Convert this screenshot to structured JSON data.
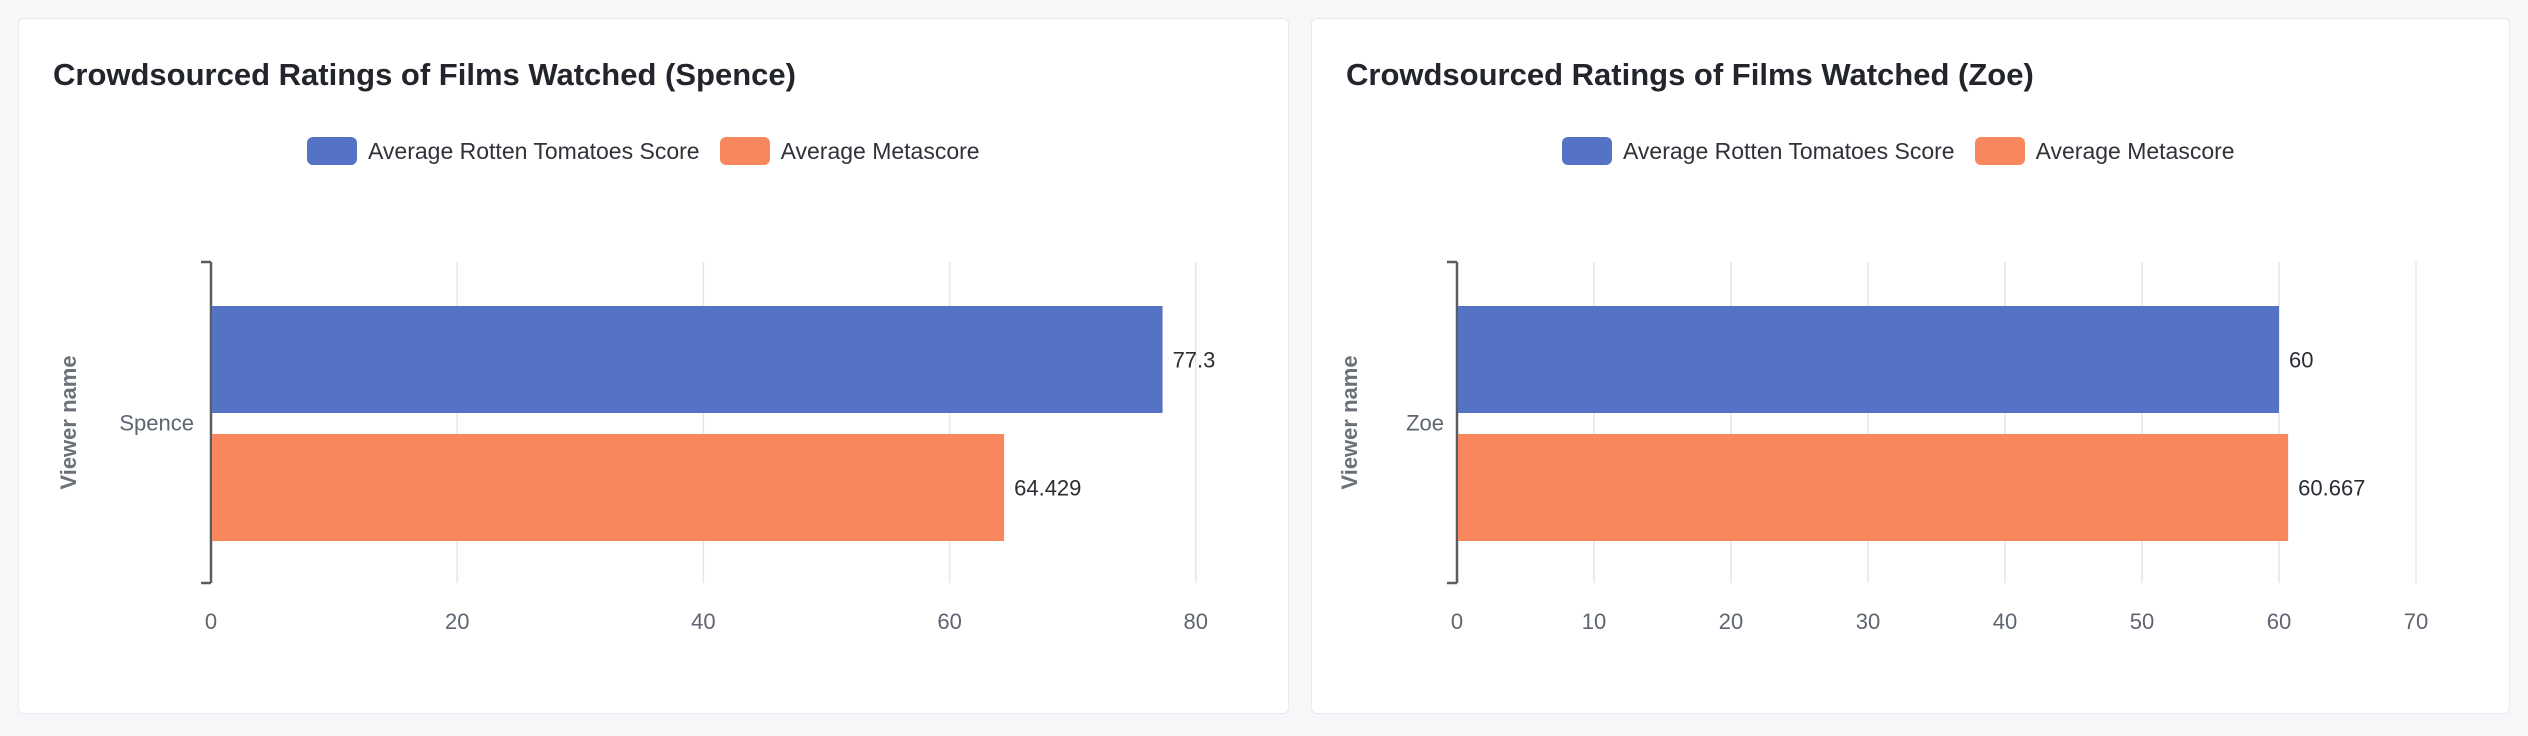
{
  "colors": {
    "rotten_tomatoes": "#5573c5",
    "metascore": "#f8875d"
  },
  "chart_data": [
    {
      "type": "bar",
      "orientation": "horizontal",
      "title": "Crowdsourced Ratings of Films Watched (Spence)",
      "ylabel": "Viewer name",
      "xlabel": "",
      "categories": [
        "Spence"
      ],
      "series": [
        {
          "name": "Average Rotten Tomatoes Score",
          "values": [
            77.3
          ],
          "labels": [
            "77.3"
          ]
        },
        {
          "name": "Average Metascore",
          "values": [
            64.429
          ],
          "labels": [
            "64.429"
          ]
        }
      ],
      "xlim": [
        0,
        80
      ],
      "xticks": [
        "0",
        "20",
        "40",
        "60",
        "80"
      ],
      "grid": true,
      "legend_position": "top"
    },
    {
      "type": "bar",
      "orientation": "horizontal",
      "title": "Crowdsourced Ratings of Films Watched (Zoe)",
      "ylabel": "Viewer name",
      "xlabel": "",
      "categories": [
        "Zoe"
      ],
      "series": [
        {
          "name": "Average Rotten Tomatoes Score",
          "values": [
            60
          ],
          "labels": [
            "60"
          ]
        },
        {
          "name": "Average Metascore",
          "values": [
            60.667
          ],
          "labels": [
            "60.667"
          ]
        }
      ],
      "xlim": [
        0,
        70
      ],
      "xticks": [
        "0",
        "10",
        "20",
        "30",
        "40",
        "50",
        "60",
        "70"
      ],
      "grid": true,
      "legend_position": "top"
    }
  ]
}
